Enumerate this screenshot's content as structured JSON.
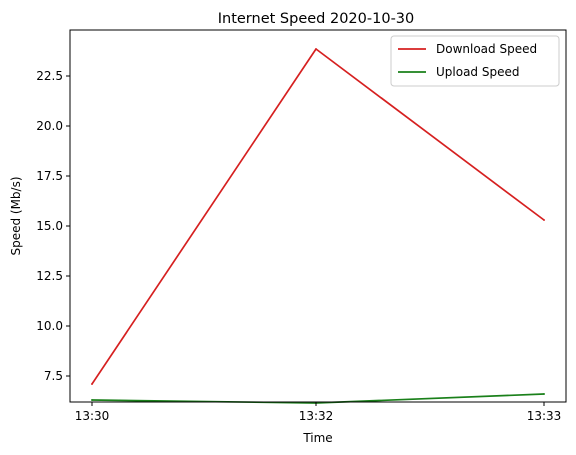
{
  "chart_data": {
    "type": "line",
    "title": "Internet Speed 2020-10-30",
    "xlabel": "Time",
    "ylabel": "Speed (Mb/s)",
    "categories": [
      "13:30",
      "13:32",
      "13:33"
    ],
    "yticks": [
      "7.5",
      "10.0",
      "12.5",
      "15.0",
      "17.5",
      "20.0",
      "22.5"
    ],
    "ylim": [
      6.2,
      24.8
    ],
    "grid": false,
    "legend_position": "top-right",
    "series": [
      {
        "name": "Download Speed",
        "color": "#d62020",
        "values": [
          7.1,
          23.85,
          15.3
        ]
      },
      {
        "name": "Upload Speed",
        "color": "#1a801a",
        "values": [
          6.3,
          6.15,
          6.6
        ]
      }
    ]
  }
}
